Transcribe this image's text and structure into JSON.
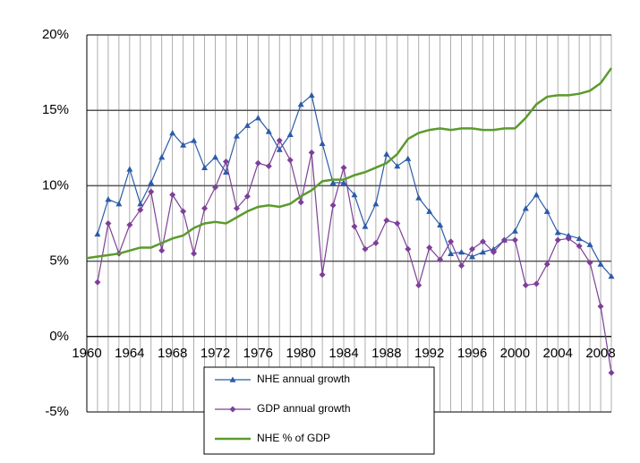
{
  "chart_data": {
    "type": "line",
    "x": [
      1960,
      1961,
      1962,
      1963,
      1964,
      1965,
      1966,
      1967,
      1968,
      1969,
      1970,
      1971,
      1972,
      1973,
      1974,
      1975,
      1976,
      1977,
      1978,
      1979,
      1980,
      1981,
      1982,
      1983,
      1984,
      1985,
      1986,
      1987,
      1988,
      1989,
      1990,
      1991,
      1992,
      1993,
      1994,
      1995,
      1996,
      1997,
      1998,
      1999,
      2000,
      2001,
      2002,
      2003,
      2004,
      2005,
      2006,
      2007,
      2008,
      2009
    ],
    "series": [
      {
        "name": "NHE annual growth",
        "color": "#2b5ba8",
        "marker": "triangle",
        "values": [
          null,
          6.8,
          9.1,
          8.8,
          11.1,
          8.8,
          10.2,
          11.9,
          13.5,
          12.7,
          13.0,
          11.2,
          11.9,
          10.9,
          13.3,
          14.0,
          14.5,
          13.6,
          12.4,
          13.4,
          15.4,
          16.0,
          12.8,
          10.2,
          10.2,
          9.4,
          7.3,
          8.8,
          12.1,
          11.3,
          11.8,
          9.2,
          8.3,
          7.4,
          5.5,
          5.6,
          5.3,
          5.6,
          5.8,
          6.4,
          7.0,
          8.5,
          9.4,
          8.3,
          6.9,
          6.7,
          6.5,
          6.1,
          4.8,
          4.0
        ]
      },
      {
        "name": "GDP annual growth",
        "color": "#7d3f98",
        "marker": "diamond",
        "values": [
          null,
          3.6,
          7.5,
          5.5,
          7.4,
          8.4,
          9.6,
          5.7,
          9.4,
          8.3,
          5.5,
          8.5,
          9.9,
          11.6,
          8.5,
          9.3,
          11.5,
          11.3,
          13.0,
          11.7,
          8.9,
          12.2,
          4.1,
          8.7,
          11.2,
          7.3,
          5.8,
          6.2,
          7.7,
          7.5,
          5.8,
          3.4,
          5.9,
          5.1,
          6.3,
          4.7,
          5.8,
          6.3,
          5.6,
          6.4,
          6.4,
          3.4,
          3.5,
          4.8,
          6.4,
          6.5,
          6.0,
          4.9,
          2.0,
          -2.4
        ]
      },
      {
        "name": "NHE % of GDP",
        "color": "#5b9b2c",
        "marker": "none",
        "values": [
          5.2,
          5.3,
          5.4,
          5.5,
          5.7,
          5.9,
          5.9,
          6.2,
          6.5,
          6.7,
          7.2,
          7.5,
          7.6,
          7.5,
          7.9,
          8.3,
          8.6,
          8.7,
          8.6,
          8.8,
          9.3,
          9.7,
          10.3,
          10.4,
          10.4,
          10.7,
          10.9,
          11.2,
          11.5,
          12.1,
          13.1,
          13.5,
          13.7,
          13.8,
          13.7,
          13.8,
          13.8,
          13.7,
          13.7,
          13.8,
          13.8,
          14.5,
          15.4,
          15.9,
          16.0,
          16.0,
          16.1,
          16.3,
          16.8,
          17.8
        ]
      }
    ],
    "xlim": [
      1960,
      2009
    ],
    "xticks": [
      1960,
      1964,
      1968,
      1972,
      1976,
      1980,
      1984,
      1988,
      1992,
      1996,
      2000,
      2004,
      2008
    ],
    "ylim": [
      -5,
      20
    ],
    "yticks": [
      {
        "value": -5,
        "label": "-5%"
      },
      {
        "value": 0,
        "label": "0%"
      },
      {
        "value": 5,
        "label": "5%"
      },
      {
        "value": 10,
        "label": "10%"
      },
      {
        "value": 15,
        "label": "15%"
      },
      {
        "value": 20,
        "label": "20%"
      }
    ],
    "grid": true,
    "xgrid": true,
    "legend": "bottom"
  }
}
